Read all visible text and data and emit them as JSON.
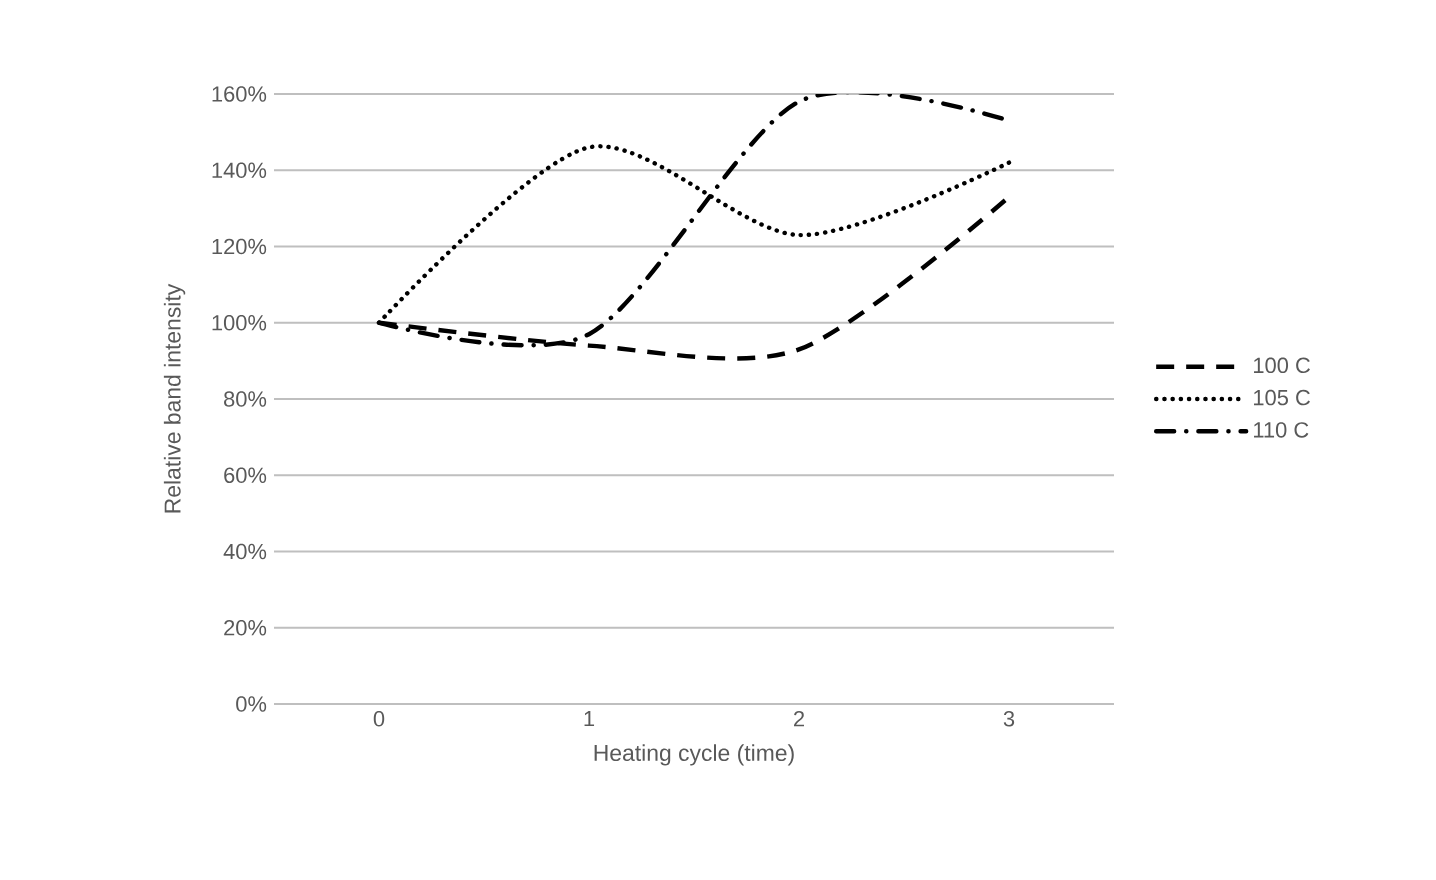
{
  "chart_data": {
    "type": "line",
    "xlabel": "Heating cycle (time)",
    "ylabel": "Relative band intensity",
    "categories": [
      "0",
      "1",
      "2",
      "3"
    ],
    "series": [
      {
        "name": "100 C",
        "color": "#000000",
        "line_style": "dashed",
        "values": [
          100,
          94,
          93,
          133
        ]
      },
      {
        "name": "105 C",
        "color": "#000000",
        "line_style": "dotted",
        "values": [
          100,
          146,
          123,
          142
        ]
      },
      {
        "name": "110 C",
        "color": "#000000",
        "line_style": "dashdot",
        "values": [
          100,
          97,
          158,
          153
        ]
      }
    ],
    "ylim": [
      0,
      160
    ],
    "yticks": [
      {
        "value": 0,
        "label": "0%"
      },
      {
        "value": 20,
        "label": "20%"
      },
      {
        "value": 40,
        "label": "40%"
      },
      {
        "value": 60,
        "label": "60%"
      },
      {
        "value": 80,
        "label": "80%"
      },
      {
        "value": 100,
        "label": "100%"
      },
      {
        "value": 120,
        "label": "120%"
      },
      {
        "value": 140,
        "label": "140%"
      },
      {
        "value": 160,
        "label": "160%"
      }
    ],
    "grid": "y",
    "legend": "right"
  }
}
